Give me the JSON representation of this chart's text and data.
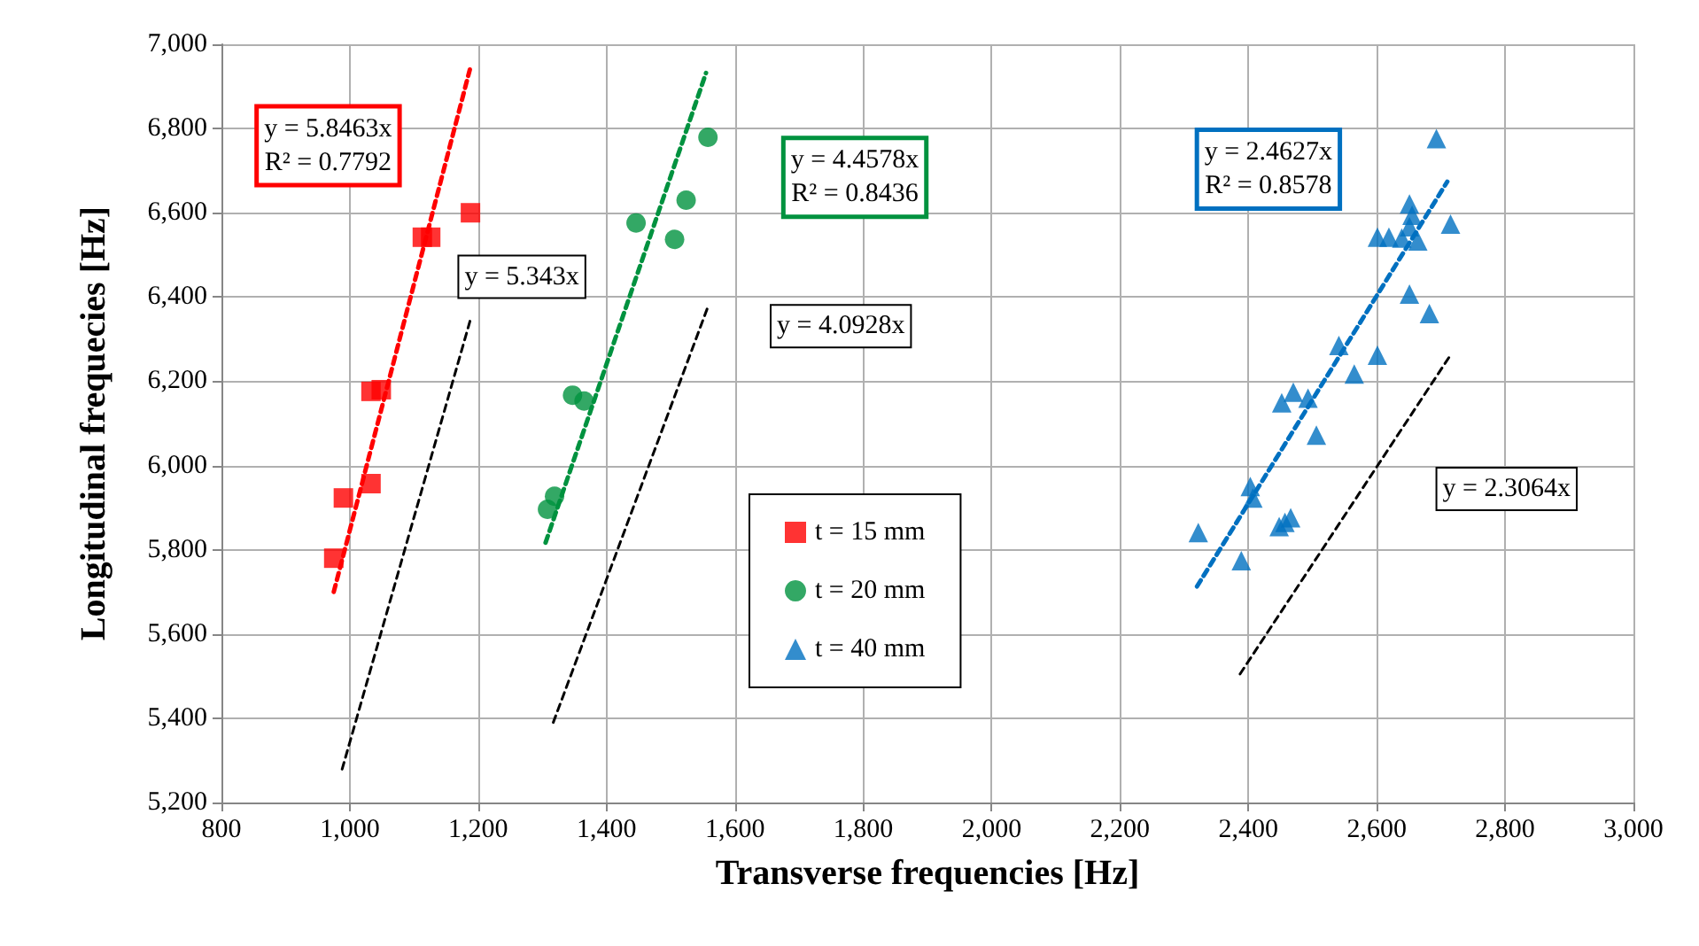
{
  "chart_data": {
    "type": "scatter",
    "xlabel": "Transverse frequencies [Hz]",
    "ylabel": "Longitudinal frequecies [Hz]",
    "xlim": [
      800,
      3000
    ],
    "ylim": [
      5200,
      7000
    ],
    "xticks": [
      {
        "value": 800,
        "label": "800"
      },
      {
        "value": 1000,
        "label": "1,000"
      },
      {
        "value": 1200,
        "label": "1,200"
      },
      {
        "value": 1400,
        "label": "1,400"
      },
      {
        "value": 1600,
        "label": "1,600"
      },
      {
        "value": 1800,
        "label": "1,800"
      },
      {
        "value": 2000,
        "label": "2,000"
      },
      {
        "value": 2200,
        "label": "2,200"
      },
      {
        "value": 2400,
        "label": "2,400"
      },
      {
        "value": 2600,
        "label": "2,600"
      },
      {
        "value": 2800,
        "label": "2,800"
      },
      {
        "value": 3000,
        "label": "3,000"
      }
    ],
    "yticks": [
      {
        "value": 5200,
        "label": "5,200"
      },
      {
        "value": 5400,
        "label": "5,400"
      },
      {
        "value": 5600,
        "label": "5,600"
      },
      {
        "value": 5800,
        "label": "5,800"
      },
      {
        "value": 6000,
        "label": "6,000"
      },
      {
        "value": 6200,
        "label": "6,200"
      },
      {
        "value": 6400,
        "label": "6,400"
      },
      {
        "value": 6600,
        "label": "6,600"
      },
      {
        "value": 6800,
        "label": "6,800"
      },
      {
        "value": 7000,
        "label": "7,000"
      }
    ],
    "grid": true,
    "legend": "bottom",
    "series": [
      {
        "name": "t = 15 mm",
        "color": "#ff0000",
        "marker": "square",
        "x": [
          975,
          990,
          1033,
          1033,
          1049,
          1113,
          1126,
          1188
        ],
        "values": [
          5780,
          5923,
          5957,
          6176,
          6180,
          6542,
          6542,
          6600
        ]
      },
      {
        "name": "t = 20 mm",
        "color": "#00923f",
        "marker": "circle",
        "x": [
          1308,
          1319,
          1347,
          1365,
          1446,
          1506,
          1524,
          1558
        ],
        "values": [
          5896,
          5927,
          6167,
          6153,
          6576,
          6537,
          6630,
          6779
        ]
      },
      {
        "name": "t = 40 mm",
        "color": "#0070c0",
        "marker": "triangle",
        "x": [
          2322,
          2389,
          2403,
          2407,
          2448,
          2457,
          2466,
          2452,
          2470,
          2493,
          2506,
          2541,
          2565,
          2601,
          2601,
          2619,
          2651,
          2651,
          2655,
          2651,
          2664,
          2639,
          2682,
          2693,
          2715
        ],
        "values": [
          5841,
          5774,
          5950,
          5923,
          5855,
          5865,
          5876,
          6149,
          6174,
          6160,
          6072,
          6285,
          6217,
          6262,
          6542,
          6542,
          6407,
          6621,
          6594,
          6567,
          6533,
          6540,
          6361,
          6776,
          6573
        ]
      },
      {
        "name": "y = 5.8463x\nR² = 0.7792",
        "type": "line",
        "color": "#ff0000",
        "line_style": "dashed",
        "marker": "none",
        "x": [
          975,
          1187
        ],
        "values": [
          5700,
          6940
        ]
      },
      {
        "name": "y = 5.343x",
        "type": "line",
        "color": "#000000",
        "line_style": "dashed",
        "marker": "none",
        "x": [
          988,
          1188
        ],
        "values": [
          5279,
          6347
        ]
      },
      {
        "name": "y = 4.4578x\nR² = 0.8436",
        "type": "line",
        "color": "#00923f",
        "line_style": "dashed",
        "marker": "none",
        "x": [
          1305,
          1555
        ],
        "values": [
          5817,
          6932
        ]
      },
      {
        "name": "y = 4.0928x",
        "type": "line",
        "color": "#000000",
        "line_style": "dashed",
        "marker": "none",
        "x": [
          1317,
          1558
        ],
        "values": [
          5390,
          6377
        ]
      },
      {
        "name": "y = 2.4627x\nR² = 0.8578",
        "type": "line",
        "color": "#0070c0",
        "line_style": "dashed",
        "marker": "none",
        "x": [
          2320,
          2710
        ],
        "values": [
          5713,
          6674
        ]
      },
      {
        "name": "y = 2.3064x",
        "type": "line",
        "color": "#000000",
        "line_style": "dashed",
        "marker": "none",
        "x": [
          2387,
          2714
        ],
        "values": [
          5505,
          6260
        ]
      }
    ]
  }
}
